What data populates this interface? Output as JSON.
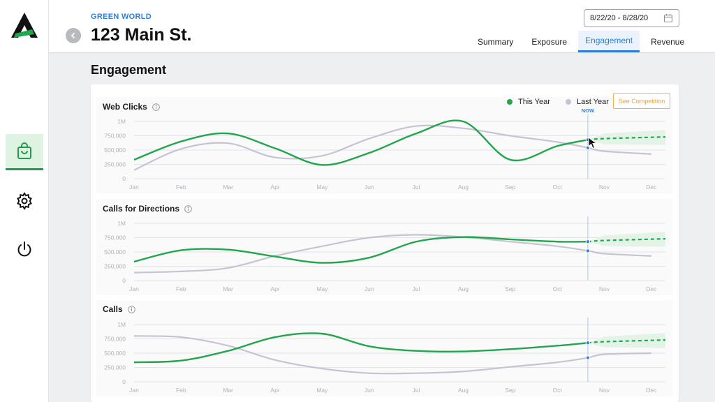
{
  "header": {
    "brand": "GREEN WORLD",
    "title": "123 Main St.",
    "date_range": "8/22/20 - 8/28/20",
    "tabs": [
      {
        "label": "Summary",
        "active": false
      },
      {
        "label": "Exposure",
        "active": false
      },
      {
        "label": "Engagement",
        "active": true
      },
      {
        "label": "Revenue",
        "active": false
      }
    ]
  },
  "sidebar": {
    "items": [
      {
        "icon": "shopping-bag-icon",
        "active": true
      },
      {
        "icon": "gear-icon",
        "active": false
      },
      {
        "icon": "power-icon",
        "active": false
      }
    ]
  },
  "section_title": "Engagement",
  "legend": {
    "this_year": "This Year",
    "last_year": "Last Year",
    "competition_button": "See Competition",
    "now_label": "NOW"
  },
  "colors": {
    "this_year": "#22a54c",
    "last_year": "#c5c4d0",
    "accent": "#2f7fd8",
    "competition": "#f0a22e"
  },
  "chart_data": [
    {
      "type": "line",
      "title": "Web Clicks",
      "x": [
        "Jan",
        "Feb",
        "Mar",
        "Apr",
        "May",
        "Jun",
        "Jul",
        "Aug",
        "Sep",
        "Oct",
        "Now",
        "Nov",
        "Dec"
      ],
      "yticks": [
        "0",
        "250,000",
        "500,000",
        "750,000",
        "1M"
      ],
      "ylim": [
        0,
        1000000
      ],
      "series": [
        {
          "name": "This Year",
          "values": [
            330000,
            650000,
            790000,
            530000,
            240000,
            450000,
            790000,
            1000000,
            330000,
            570000,
            680000,
            null,
            null
          ],
          "forecast": [
            680000,
            700000,
            730000
          ]
        },
        {
          "name": "Last Year",
          "values": [
            150000,
            520000,
            620000,
            370000,
            400000,
            700000,
            920000,
            880000,
            750000,
            640000,
            540000,
            480000,
            430000
          ]
        }
      ]
    },
    {
      "type": "line",
      "title": "Calls for Directions",
      "x": [
        "Jan",
        "Feb",
        "Mar",
        "Apr",
        "May",
        "Jun",
        "Jul",
        "Aug",
        "Sep",
        "Oct",
        "Now",
        "Nov",
        "Dec"
      ],
      "yticks": [
        "0",
        "250,000",
        "500,000",
        "750,000",
        "1M"
      ],
      "ylim": [
        0,
        1000000
      ],
      "series": [
        {
          "name": "This Year",
          "values": [
            330000,
            530000,
            540000,
            420000,
            310000,
            400000,
            680000,
            760000,
            720000,
            680000,
            680000,
            null,
            null
          ],
          "forecast": [
            680000,
            700000,
            730000
          ]
        },
        {
          "name": "Last Year",
          "values": [
            140000,
            160000,
            220000,
            430000,
            600000,
            750000,
            800000,
            760000,
            680000,
            600000,
            520000,
            470000,
            430000
          ]
        }
      ]
    },
    {
      "type": "line",
      "title": "Calls",
      "x": [
        "Jan",
        "Feb",
        "Mar",
        "Apr",
        "May",
        "Jun",
        "Jul",
        "Aug",
        "Sep",
        "Oct",
        "Now",
        "Nov",
        "Dec"
      ],
      "yticks": [
        "0",
        "250,000",
        "500,000",
        "750,000",
        "1M"
      ],
      "ylim": [
        0,
        1000000
      ],
      "series": [
        {
          "name": "This Year",
          "values": [
            340000,
            370000,
            540000,
            780000,
            840000,
            620000,
            540000,
            530000,
            570000,
            630000,
            680000,
            null,
            null
          ],
          "forecast": [
            680000,
            700000,
            730000
          ]
        },
        {
          "name": "Last Year",
          "values": [
            800000,
            780000,
            630000,
            380000,
            230000,
            150000,
            150000,
            180000,
            260000,
            340000,
            420000,
            480000,
            500000
          ]
        }
      ]
    }
  ]
}
